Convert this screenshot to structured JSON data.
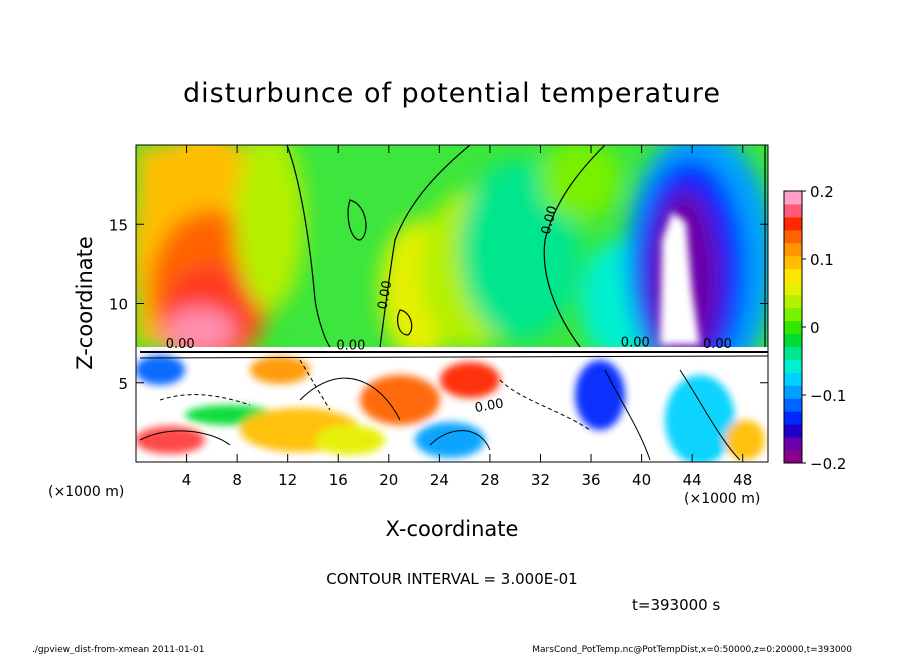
{
  "chart_data": {
    "type": "heatmap",
    "title": "disturbunce of potential temperature",
    "xlabel": "X-coordinate",
    "ylabel": "Z-coordinate",
    "x_units_left": "(×1000 m)",
    "x_units_right": "(×1000 m)",
    "xlim": [
      0,
      50
    ],
    "ylim": [
      0,
      20
    ],
    "x_ticks": [
      "4",
      "8",
      "12",
      "16",
      "20",
      "24",
      "28",
      "32",
      "36",
      "40",
      "44",
      "48"
    ],
    "y_ticks": [
      "5",
      "10",
      "15"
    ],
    "colorbar": {
      "range": [
        -0.2,
        0.2
      ],
      "tick_labels": [
        "0.2",
        "0.1",
        "0",
        "−0.1",
        "−0.2"
      ],
      "colors": [
        "#8b008b",
        "#6a00a8",
        "#1c00c8",
        "#0028ff",
        "#0064ff",
        "#00a0ff",
        "#00d2ff",
        "#00f0d0",
        "#00e68c",
        "#00dc32",
        "#32e600",
        "#78f000",
        "#b4f000",
        "#e6f000",
        "#ffe600",
        "#ffbe00",
        "#ff9600",
        "#ff6400",
        "#ff2800",
        "#ff5a78",
        "#ffa0c8"
      ]
    },
    "contour_labels": [
      "0.00",
      "0.00",
      "0.00",
      "0.00",
      "0.00",
      "0.00",
      "0.00"
    ],
    "contour_interval": "CONTOUR INTERVAL = 3.000E-01",
    "time_label": "t=393000 s"
  },
  "footer": {
    "left": "./gpview_dist-from-xmean   2011-01-01",
    "right": "MarsCond_PotTemp.nc@PotTempDist,x=0:50000,z=0:20000,t=393000"
  }
}
